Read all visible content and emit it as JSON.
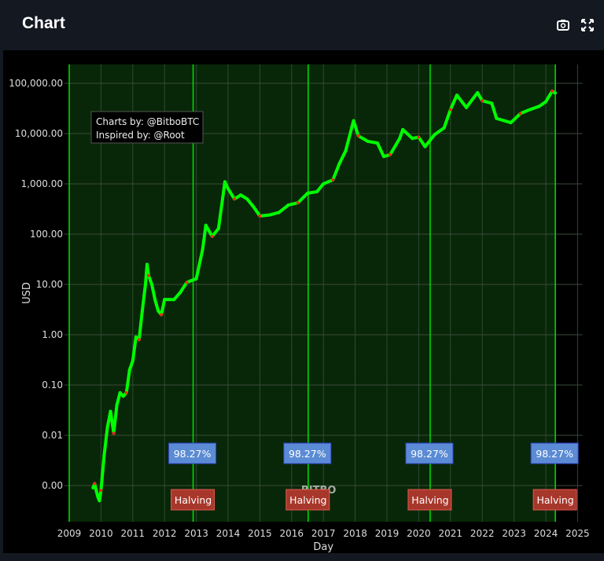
{
  "header": {
    "title": "Chart",
    "icons": [
      "camera-icon",
      "fullscreen-icon"
    ]
  },
  "chart_data": {
    "type": "scatter",
    "xlabel": "Day",
    "ylabel": "USD",
    "yscale": "log",
    "xlim": [
      2009,
      2025
    ],
    "ylim": [
      0.0003,
      250000
    ],
    "xticks": [
      "2009",
      "2010",
      "2011",
      "2012",
      "2013",
      "2014",
      "2015",
      "2016",
      "2017",
      "2018",
      "2019",
      "2020",
      "2021",
      "2022",
      "2023",
      "2024",
      "2025"
    ],
    "yticks": [
      {
        "v": 0.001,
        "label": "0.00"
      },
      {
        "v": 0.01,
        "label": "0.01"
      },
      {
        "v": 0.1,
        "label": "0.10"
      },
      {
        "v": 1,
        "label": "1.00"
      },
      {
        "v": 10,
        "label": "10.00"
      },
      {
        "v": 100,
        "label": "100.00"
      },
      {
        "v": 1000,
        "label": "1,000.00"
      },
      {
        "v": 10000,
        "label": "10,000.00"
      },
      {
        "v": 100000,
        "label": "100,000.00"
      }
    ],
    "grid": true,
    "colors": {
      "price": "#00ff00",
      "price_alt": "#e8291c",
      "background_region": "#082708",
      "halving_line": "#00e000",
      "percent_box": "#5b8bd4",
      "halving_box": "#a8372b"
    },
    "annotation": [
      "Charts by: @BitboBTC",
      "Inspired by: @Root"
    ],
    "watermark": "BITBO",
    "halvings": [
      {
        "x": 2012.9,
        "label": "Halving",
        "percent": "98.27%"
      },
      {
        "x": 2016.52,
        "label": "Halving",
        "percent": "98.27%"
      },
      {
        "x": 2020.36,
        "label": "Halving",
        "percent": "98.27%"
      },
      {
        "x": 2024.3,
        "label": "Halving",
        "percent": "98.27%"
      }
    ],
    "series": [
      {
        "points": [
          [
            2009.75,
            0.0009
          ],
          [
            2009.8,
            0.0011
          ],
          [
            2009.85,
            0.0008
          ],
          [
            2009.9,
            0.0006
          ],
          [
            2009.95,
            0.0005
          ],
          [
            2010.0,
            0.0008
          ],
          [
            2010.1,
            0.004
          ],
          [
            2010.2,
            0.014
          ],
          [
            2010.3,
            0.03
          ],
          [
            2010.4,
            0.011
          ],
          [
            2010.5,
            0.04
          ],
          [
            2010.6,
            0.07
          ],
          [
            2010.7,
            0.06
          ],
          [
            2010.8,
            0.07
          ],
          [
            2010.9,
            0.2
          ],
          [
            2011.0,
            0.3
          ],
          [
            2011.1,
            0.9
          ],
          [
            2011.2,
            0.8
          ],
          [
            2011.3,
            3
          ],
          [
            2011.4,
            10
          ],
          [
            2011.45,
            25
          ],
          [
            2011.5,
            15
          ],
          [
            2011.6,
            10
          ],
          [
            2011.7,
            5
          ],
          [
            2011.8,
            3
          ],
          [
            2011.9,
            2.5
          ],
          [
            2012.0,
            5
          ],
          [
            2012.3,
            5
          ],
          [
            2012.5,
            7
          ],
          [
            2012.7,
            11
          ],
          [
            2013.0,
            13
          ],
          [
            2013.2,
            50
          ],
          [
            2013.3,
            150
          ],
          [
            2013.5,
            90
          ],
          [
            2013.7,
            130
          ],
          [
            2013.9,
            1100
          ],
          [
            2014.0,
            800
          ],
          [
            2014.2,
            500
          ],
          [
            2014.4,
            600
          ],
          [
            2014.6,
            500
          ],
          [
            2014.8,
            350
          ],
          [
            2015.0,
            230
          ],
          [
            2015.3,
            240
          ],
          [
            2015.6,
            270
          ],
          [
            2015.9,
            380
          ],
          [
            2016.2,
            420
          ],
          [
            2016.5,
            650
          ],
          [
            2016.8,
            700
          ],
          [
            2017.0,
            1000
          ],
          [
            2017.3,
            1200
          ],
          [
            2017.5,
            2500
          ],
          [
            2017.7,
            4500
          ],
          [
            2017.95,
            18000
          ],
          [
            2018.1,
            9000
          ],
          [
            2018.4,
            7000
          ],
          [
            2018.7,
            6500
          ],
          [
            2018.9,
            3500
          ],
          [
            2019.1,
            3800
          ],
          [
            2019.4,
            8000
          ],
          [
            2019.5,
            12000
          ],
          [
            2019.8,
            8000
          ],
          [
            2020.0,
            8500
          ],
          [
            2020.2,
            5500
          ],
          [
            2020.5,
            9500
          ],
          [
            2020.8,
            13000
          ],
          [
            2021.0,
            30000
          ],
          [
            2021.2,
            58000
          ],
          [
            2021.5,
            33000
          ],
          [
            2021.85,
            65000
          ],
          [
            2022.0,
            45000
          ],
          [
            2022.3,
            40000
          ],
          [
            2022.45,
            20000
          ],
          [
            2022.9,
            16500
          ],
          [
            2023.2,
            25000
          ],
          [
            2023.5,
            30000
          ],
          [
            2023.8,
            35000
          ],
          [
            2024.0,
            43000
          ],
          [
            2024.2,
            70000
          ],
          [
            2024.3,
            64000
          ]
        ]
      }
    ]
  }
}
